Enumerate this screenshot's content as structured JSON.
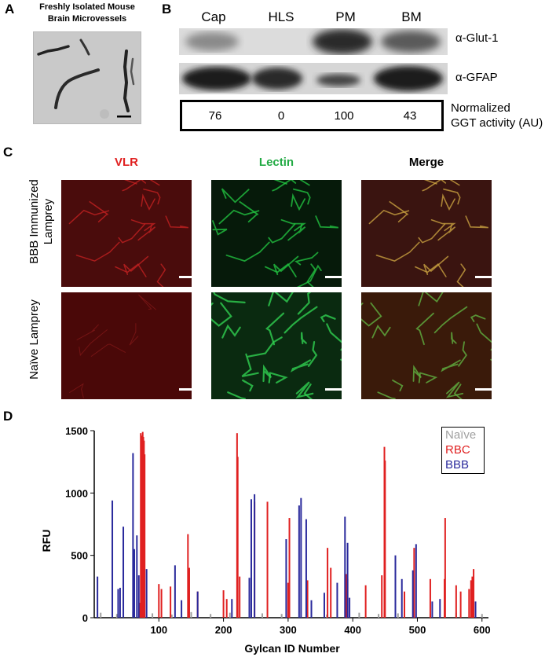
{
  "panel_letters": {
    "a": "A",
    "b": "B",
    "c": "C",
    "d": "D"
  },
  "panel_a": {
    "caption_line1": "Freshly Isolated Mouse",
    "caption_line2": "Brain Microvessels"
  },
  "panel_b": {
    "lanes": [
      "Cap",
      "HLS",
      "PM",
      "BM"
    ],
    "antibodies": [
      "α-Glut-1",
      "α-GFAP"
    ],
    "ggt_values": [
      "76",
      "0",
      "100",
      "43"
    ],
    "ggt_caption_line1": "Normalized",
    "ggt_caption_line2": "GGT activity (AU)"
  },
  "panel_c": {
    "columns": [
      "VLR",
      "Lectin",
      "Merge"
    ],
    "column_colors": [
      "#e02020",
      "#22aa44",
      "#000000"
    ],
    "rows": [
      "BBB Immunized Lamprey",
      "Naïve Lamprey"
    ]
  },
  "chart_data": {
    "type": "bar",
    "xlabel": "Gylcan ID Number",
    "ylabel": "RFU",
    "xlim": [
      0,
      610
    ],
    "ylim": [
      0,
      1500
    ],
    "xticks": [
      100,
      200,
      300,
      400,
      500,
      600
    ],
    "yticks": [
      0,
      500,
      1000,
      1500
    ],
    "legend_position": "top-right",
    "series": [
      {
        "name": "Naïve",
        "color": "#a0a0a0",
        "x": [
          10,
          35,
          60,
          90,
          120,
          150,
          180,
          210,
          260,
          290,
          330,
          360,
          410,
          440,
          470,
          520,
          560,
          600
        ],
        "values": [
          40,
          30,
          50,
          35,
          25,
          45,
          30,
          40,
          35,
          30,
          45,
          25,
          40,
          30,
          35,
          30,
          40,
          30
        ]
      },
      {
        "name": "RBC",
        "color": "#e02020",
        "x": [
          70,
          72,
          73,
          74,
          75,
          76,
          77,
          78,
          100,
          104,
          118,
          145,
          147,
          160,
          200,
          205,
          221,
          222,
          225,
          248,
          268,
          300,
          302,
          330,
          361,
          366,
          390,
          392,
          420,
          445,
          449,
          450,
          480,
          495,
          520,
          542,
          543,
          560,
          567,
          580,
          583,
          585,
          587
        ],
        "values": [
          120,
          1480,
          1380,
          1460,
          1490,
          1450,
          1420,
          1310,
          270,
          230,
          250,
          670,
          400,
          210,
          220,
          150,
          1480,
          1290,
          330,
          930,
          930,
          280,
          800,
          300,
          560,
          400,
          350,
          310,
          260,
          340,
          1370,
          1260,
          210,
          560,
          310,
          310,
          800,
          260,
          210,
          230,
          300,
          330,
          390
        ]
      },
      {
        "name": "BBB",
        "color": "#2a2a9c",
        "x": [
          5,
          28,
          37,
          40,
          45,
          60,
          62,
          66,
          69,
          81,
          125,
          135,
          160,
          213,
          240,
          243,
          248,
          297,
          317,
          320,
          328,
          336,
          356,
          376,
          388,
          392,
          395,
          466,
          476,
          493,
          498,
          523,
          535,
          590
        ],
        "values": [
          330,
          940,
          230,
          240,
          730,
          1320,
          550,
          660,
          340,
          390,
          420,
          140,
          210,
          150,
          320,
          950,
          990,
          630,
          900,
          960,
          790,
          140,
          200,
          280,
          810,
          600,
          160,
          500,
          310,
          380,
          590,
          130,
          150,
          130
        ]
      }
    ]
  }
}
